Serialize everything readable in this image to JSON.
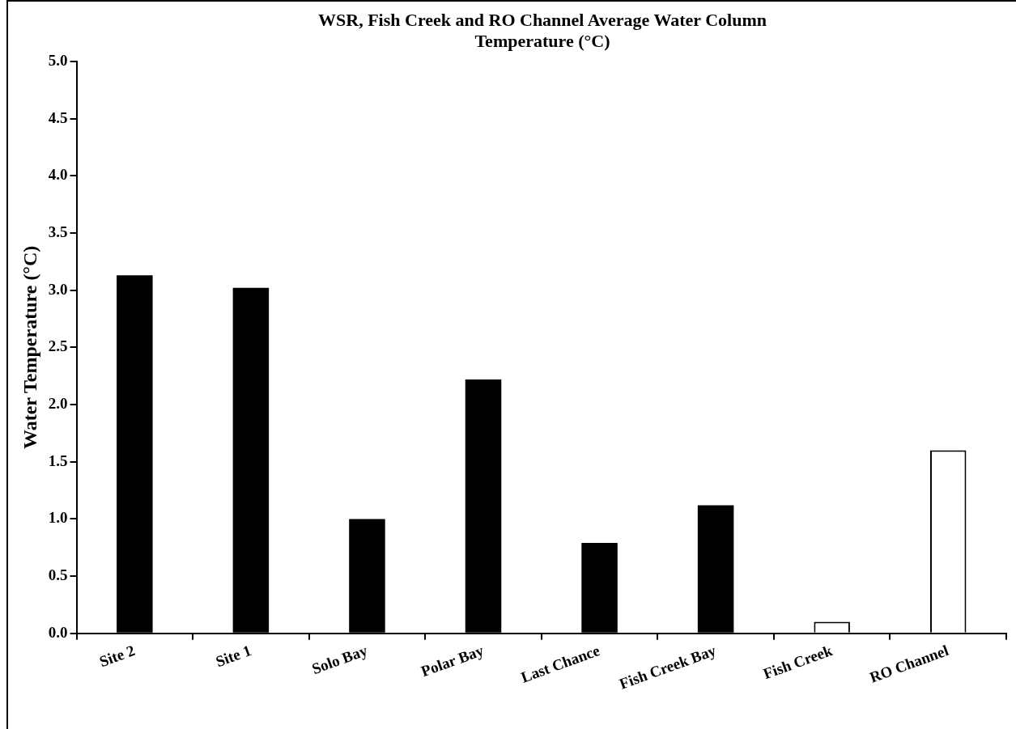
{
  "chart_data": {
    "type": "bar",
    "title": "WSR, Fish Creek and RO Channel Average Water Column Temperature (°C)",
    "ylabel": "Water Temperature (°C)",
    "categories": [
      "Site 2",
      "Site 1",
      "Solo Bay",
      "Polar Bay",
      "Last Chance",
      "Fish Creek Bay",
      "Fish Creek",
      "RO Channel"
    ],
    "values": [
      3.13,
      3.02,
      1.0,
      2.22,
      0.79,
      1.12,
      0.1,
      1.6
    ],
    "colors": [
      "#000000",
      "#000000",
      "#000000",
      "#000000",
      "#000000",
      "#000000",
      "#ffffff",
      "#ffffff"
    ],
    "ylim": [
      0,
      5
    ],
    "yticks": [
      {
        "value": 0,
        "label": "0.0"
      },
      {
        "value": 0.5,
        "label": "0.5"
      },
      {
        "value": 1,
        "label": "1.0"
      },
      {
        "value": 1.5,
        "label": "1.5"
      },
      {
        "value": 2,
        "label": "2.0"
      },
      {
        "value": 2.5,
        "label": "2.5"
      },
      {
        "value": 3,
        "label": "3.0"
      },
      {
        "value": 3.5,
        "label": "3.5"
      },
      {
        "value": 4,
        "label": "4.0"
      },
      {
        "value": 4.5,
        "label": "4.5"
      },
      {
        "value": 5,
        "label": "5.0"
      }
    ],
    "grid": false,
    "legend": false
  }
}
